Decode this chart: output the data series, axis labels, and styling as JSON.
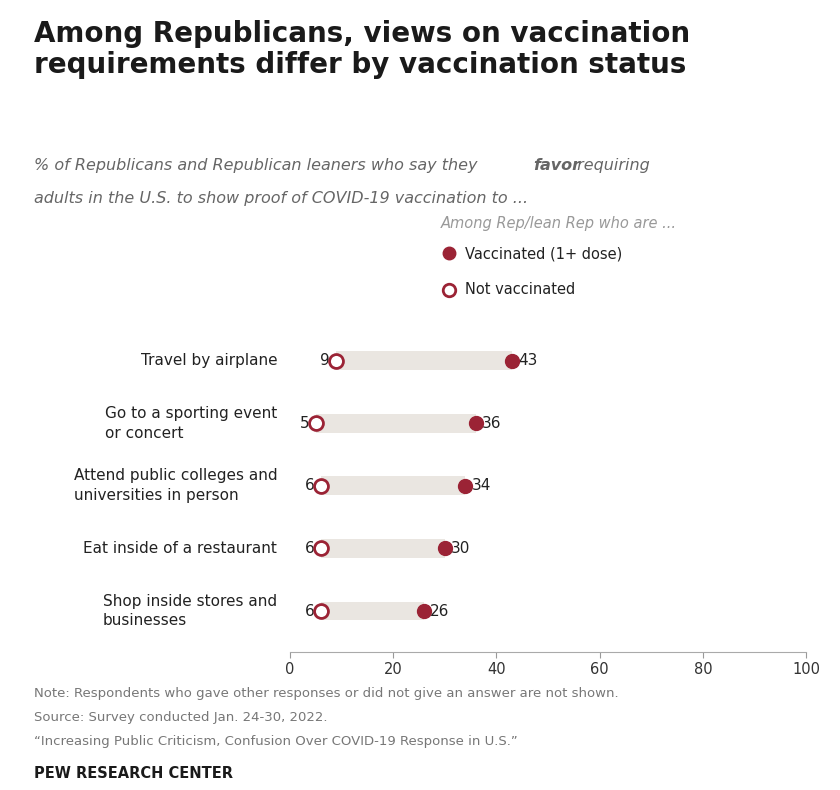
{
  "title": "Among Republicans, views on vaccination\nrequirements differ by vaccination status",
  "legend_title": "Among Rep/lean Rep who are ...",
  "legend_vaccinated": "Vaccinated (1+ dose)",
  "legend_not_vaccinated": "Not vaccinated",
  "categories": [
    "Travel by airplane",
    "Go to a sporting event\nor concert",
    "Attend public colleges and\nuniversities in person",
    "Eat inside of a restaurant",
    "Shop inside stores and\nbusinesses"
  ],
  "vaccinated_values": [
    43,
    36,
    34,
    30,
    26
  ],
  "not_vaccinated_values": [
    9,
    5,
    6,
    6,
    6
  ],
  "dot_color": "#9B2335",
  "bar_color": "#EAE6E1",
  "xlim": [
    0,
    100
  ],
  "xticks": [
    0,
    20,
    40,
    60,
    80,
    100
  ],
  "note_line1": "Note: Respondents who gave other responses or did not give an answer are not shown.",
  "note_line2": "Source: Survey conducted Jan. 24-30, 2022.",
  "note_line3": "“Increasing Public Criticism, Confusion Over COVID-19 Response in U.S.”",
  "source_label": "PEW RESEARCH CENTER",
  "background_color": "#FFFFFF"
}
